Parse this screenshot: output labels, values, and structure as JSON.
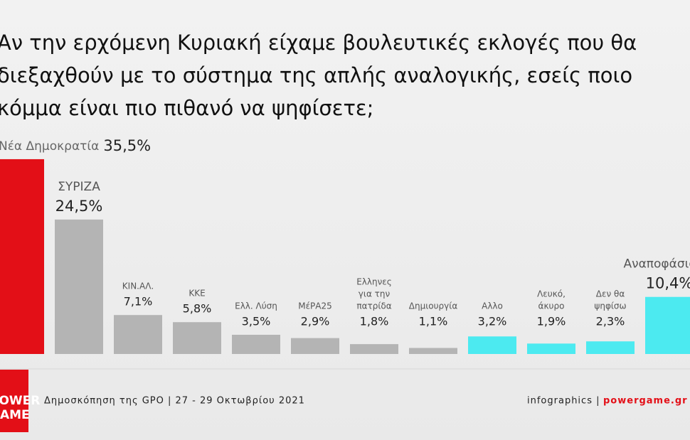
{
  "chart_data": {
    "type": "bar",
    "title_lines": [
      "Αν την ερχόμενη Κυριακή είχαμε βουλευτικές εκλογές που θα",
      "διεξαχθούν με το σύστημα της απλής αναλογικής, εσείς ποιο",
      "κόμμα είναι πιο πιθανό να ψηφίσετε;"
    ],
    "categories": [
      [
        "Νέα Δημοκρατία"
      ],
      [
        "ΣΥΡΙΖΑ"
      ],
      [
        "ΚΙΝ.ΑΛ."
      ],
      [
        "ΚΚΕ"
      ],
      [
        "Ελλ. Λύση"
      ],
      [
        "ΜέΡΑ25"
      ],
      [
        "Ελληνες",
        "για την",
        "πατρίδα"
      ],
      [
        "Δημιουργία"
      ],
      [
        "Αλλο"
      ],
      [
        "Λευκό,",
        "άκυρο"
      ],
      [
        "Δεν θα",
        "ψηφίσω"
      ],
      [
        "Αναποφάσιστοι"
      ]
    ],
    "values": [
      35.5,
      24.5,
      7.1,
      5.8,
      3.5,
      2.9,
      1.8,
      1.1,
      3.2,
      1.9,
      2.3,
      10.4
    ],
    "value_labels": [
      "35,5%",
      "24,5%",
      "7,1%",
      "5,8%",
      "3,5%",
      "2,9%",
      "1,8%",
      "1,1%",
      "3,2%",
      "1,9%",
      "2,3%",
      "10,4%"
    ],
    "colors": [
      "#e30f17",
      "#b4b4b4",
      "#b4b4b4",
      "#b4b4b4",
      "#b4b4b4",
      "#b4b4b4",
      "#b4b4b4",
      "#b4b4b4",
      "#4ceaf0",
      "#4ceaf0",
      "#4ceaf0",
      "#4ceaf0"
    ],
    "source": "Δημοσκόπηση της GPO | 27 - 29 Οκτωβρίου 2021",
    "credit": "infographics |",
    "site": "powergame.gr",
    "logo": [
      "POWER",
      "GAME"
    ]
  }
}
